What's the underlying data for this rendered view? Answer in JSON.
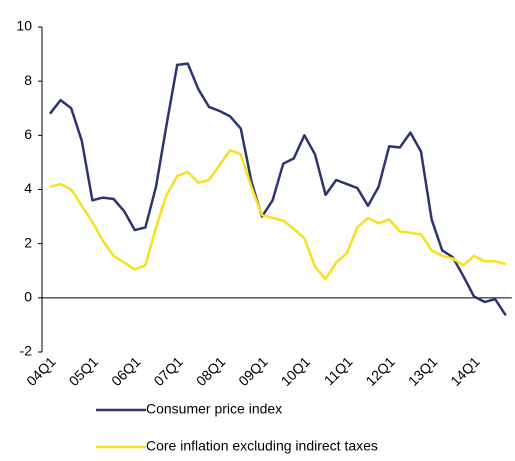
{
  "chart_data": {
    "type": "line",
    "categories": [
      "04Q1",
      null,
      null,
      null,
      "05Q1",
      null,
      null,
      null,
      "06Q1",
      null,
      null,
      null,
      "07Q1",
      null,
      null,
      null,
      "08Q1",
      null,
      null,
      null,
      "09Q1",
      null,
      null,
      null,
      "10Q1",
      null,
      null,
      null,
      "11Q1",
      null,
      null,
      null,
      "12Q1",
      null,
      null,
      null,
      "13Q1",
      null,
      null,
      null,
      "14Q1",
      null,
      null,
      null
    ],
    "series": [
      {
        "name": "Consumer price index",
        "color": "#2e3470",
        "values": [
          6.8,
          7.3,
          7.0,
          5.8,
          3.6,
          3.7,
          3.65,
          3.2,
          2.5,
          2.6,
          4.1,
          6.4,
          8.6,
          8.65,
          7.7,
          7.05,
          6.9,
          6.7,
          6.25,
          4.3,
          3.0,
          3.6,
          4.95,
          5.15,
          6.0,
          5.3,
          3.8,
          4.35,
          4.2,
          4.05,
          3.4,
          4.1,
          5.6,
          5.55,
          6.1,
          5.4,
          2.9,
          1.75,
          1.5,
          0.8,
          0.05,
          -0.15,
          -0.05,
          -0.65
        ]
      },
      {
        "name": "Core inflation excluding indirect taxes",
        "color": "#f7e11c",
        "values": [
          4.1,
          4.2,
          4.0,
          3.4,
          2.8,
          2.1,
          1.55,
          1.3,
          1.05,
          1.2,
          2.6,
          3.8,
          4.5,
          4.65,
          4.25,
          4.35,
          4.9,
          5.45,
          5.3,
          4.1,
          3.05,
          2.95,
          2.85,
          2.55,
          2.2,
          1.15,
          0.7,
          1.3,
          1.65,
          2.6,
          2.95,
          2.75,
          2.9,
          2.45,
          2.4,
          2.35,
          1.75,
          1.55,
          1.45,
          1.2,
          1.55,
          1.35,
          1.35,
          1.25
        ]
      }
    ],
    "ylim": [
      -2,
      10
    ],
    "yticks": [
      -2,
      0,
      2,
      4,
      6,
      8,
      10
    ],
    "grid": false,
    "legend": "bottom"
  }
}
